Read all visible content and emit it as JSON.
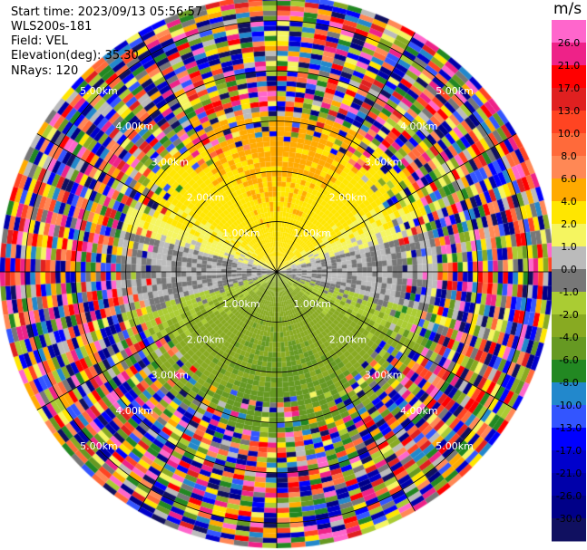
{
  "header": {
    "start_time": "Start time: 2023/09/13 05:56:57",
    "instrument": "WLS200s-181",
    "field": "Field: VEL",
    "elevation": "Elevation(deg): 35.30",
    "nrays": "NRays: 120"
  },
  "chart_data": {
    "type": "heatmap",
    "projection": "polar-ppi",
    "field": "VEL",
    "units": "m/s",
    "range_rings_km": [
      1.0,
      2.0,
      3.0,
      4.0,
      5.0
    ],
    "ring_labels": [
      "1.00km",
      "2.00km",
      "3.00km",
      "4.00km",
      "5.00km"
    ],
    "max_range_km": 5.5,
    "nrays": 120,
    "spokes_deg": [
      0,
      30,
      60,
      90,
      120,
      150,
      180,
      210,
      240,
      270,
      300,
      330
    ],
    "colorbar": {
      "title": "m/s",
      "ticks": [
        "26.0",
        "21.0",
        "17.0",
        "13.0",
        "10.0",
        "8.0",
        "6.0",
        "4.0",
        "2.0",
        "1.0",
        "0.0",
        "-1.0",
        "-2.0",
        "-4.0",
        "-6.0",
        "-8.0",
        "-10.0",
        "-13.0",
        "-17.0",
        "-21.0",
        "-26.0",
        "-30.0"
      ],
      "colors": [
        "#ff66cc",
        "#ee2288",
        "#ff0000",
        "#e02020",
        "#ff4422",
        "#ff6a3a",
        "#ff8855",
        "#ffaa00",
        "#ffe600",
        "#f5f560",
        "#bbbbbb",
        "#777777",
        "#aacc33",
        "#88aa22",
        "#669922",
        "#228822",
        "#2288cc",
        "#3355ff",
        "#0000ff",
        "#0000cc",
        "#0000aa",
        "#000088",
        "#101060"
      ]
    },
    "velocity_pattern": {
      "positive_direction": "north",
      "negative_direction": "south",
      "valid_range_km": 3.2,
      "peak_positive_ms": 5.0,
      "peak_negative_ms": -5.0,
      "noise_beyond_km": 3.2
    }
  }
}
